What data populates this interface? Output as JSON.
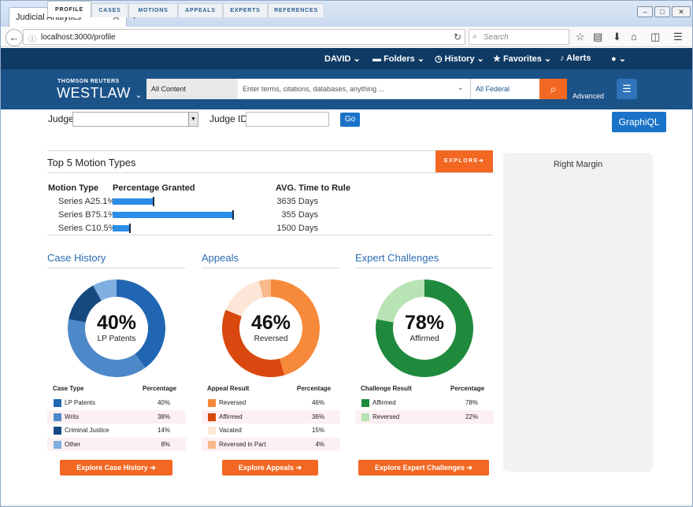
{
  "browser": {
    "tab_title": "Judicial Analytics",
    "tab_close": "✕",
    "new_tab": "+",
    "url": "localhost:3000/profile",
    "search_placeholder": "Search",
    "icons": [
      "back-icon",
      "info-icon",
      "reload-icon",
      "star-icon",
      "reading-list-icon",
      "download-icon",
      "home-icon",
      "pocket-icon",
      "menu-icon"
    ]
  },
  "westlaw": {
    "top_nav": {
      "user": "DAVID",
      "folders": "Folders",
      "history": "History",
      "favorites": "Favorites",
      "alerts": "Alerts"
    },
    "brand_small": "THOMSON REUTERS",
    "brand": "WESTLAW",
    "content_select": "All Content",
    "search_placeholder": "Enter terms, citations, databases, anything ...",
    "jurisdiction": "All Federal",
    "advanced": "Advanced",
    "accent": "#f26722"
  },
  "judge_form": {
    "judge_label": "Judge",
    "judge_id_label": "Judge ID",
    "go": "Go",
    "graphiql": "GraphiQL"
  },
  "tabs": [
    {
      "label": "PROFILE",
      "active": true
    },
    {
      "label": "CASES",
      "active": false
    },
    {
      "label": "MOTIONS",
      "active": false
    },
    {
      "label": "APPEALS",
      "active": false
    },
    {
      "label": "EXPERTS",
      "active": false
    },
    {
      "label": "REFERENCES",
      "active": false
    }
  ],
  "motions": {
    "title": "Top 5 Motion Types",
    "explore": "EXPLORE➔",
    "col_type": "Motion Type",
    "col_pct": "Percentage Granted",
    "col_avg": "AVG. Time to Rule",
    "rows": [
      {
        "label": "Series A25.1%",
        "value": 25.1,
        "days": "3635 Days"
      },
      {
        "label": "Series B75.1%",
        "value": 75.1,
        "days": "355 Days"
      },
      {
        "label": "Series C10.5%",
        "value": 10.5,
        "days": "1500 Days"
      }
    ]
  },
  "case_history": {
    "title": "Case History",
    "center_pct": "40%",
    "center_label": "LP Patents",
    "col_name": "Case Type",
    "col_pct": "Percentage",
    "rows": [
      {
        "name": "LP Patents",
        "pct": "40%",
        "value": 40,
        "color": "#2166b3"
      },
      {
        "name": "Writs",
        "pct": "38%",
        "value": 38,
        "color": "#4d88c9"
      },
      {
        "name": "Criminal Justice",
        "pct": "14%",
        "value": 14,
        "color": "#15497f"
      },
      {
        "name": "Other",
        "pct": "8%",
        "value": 8,
        "color": "#7faee0"
      }
    ],
    "button": "Explore Case History ➔"
  },
  "appeals": {
    "title": "Appeals",
    "center_pct": "46%",
    "center_label": "Reversed",
    "col_name": "Appeal Result",
    "col_pct": "Percentage",
    "rows": [
      {
        "name": "Reversed",
        "pct": "46%",
        "value": 46,
        "color": "#f7893b"
      },
      {
        "name": "Affirmed",
        "pct": "36%",
        "value": 36,
        "color": "#d9480f"
      },
      {
        "name": "Vacated",
        "pct": "15%",
        "value": 15,
        "color": "#fde6d7"
      },
      {
        "name": "Reversed in Part",
        "pct": "4%",
        "value": 4,
        "color": "#f9b98a"
      }
    ],
    "button": "Explore Appeals ➔"
  },
  "experts": {
    "title": "Expert Challenges",
    "center_pct": "78%",
    "center_label": "Affirmed",
    "col_name": "Challenge Result",
    "col_pct": "Percentage",
    "rows": [
      {
        "name": "Affirmed",
        "pct": "78%",
        "value": 78,
        "color": "#1f8a3d"
      },
      {
        "name": "Reversed",
        "pct": "22%",
        "value": 22,
        "color": "#b8e3b4"
      }
    ],
    "button": "Explore Expert Challenges ➔"
  },
  "right_margin": "Right Margin"
}
